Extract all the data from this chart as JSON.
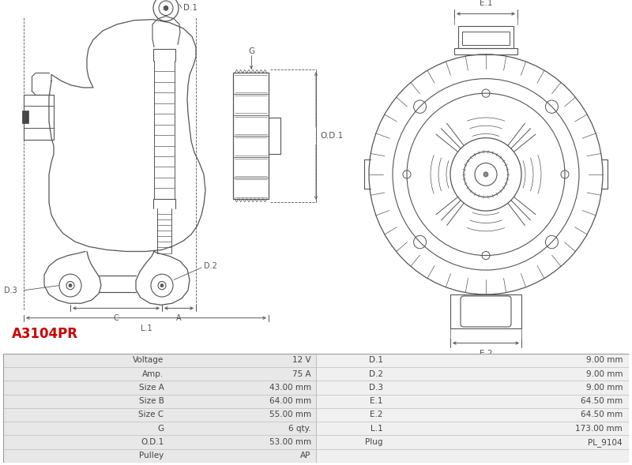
{
  "title": "A3104PR",
  "title_color": "#cc0000",
  "bg_color": "#ffffff",
  "table_rows": [
    [
      "Voltage",
      "12 V",
      "D.1",
      "9.00 mm"
    ],
    [
      "Amp.",
      "75 A",
      "D.2",
      "9.00 mm"
    ],
    [
      "Size A",
      "43.00 mm",
      "D.3",
      "9.00 mm"
    ],
    [
      "Size B",
      "64.00 mm",
      "E.1",
      "64.50 mm"
    ],
    [
      "Size C",
      "55.00 mm",
      "E.2",
      "64.50 mm"
    ],
    [
      "G",
      "6 qty.",
      "L.1",
      "173.00 mm"
    ],
    [
      "O.D.1",
      "53.00 mm",
      "Plug",
      "PL_9104"
    ],
    [
      "Pulley",
      "AP",
      "",
      ""
    ]
  ],
  "line_color": "#555555",
  "dim_color": "#555555",
  "table_border_color": "#bbbbbb"
}
